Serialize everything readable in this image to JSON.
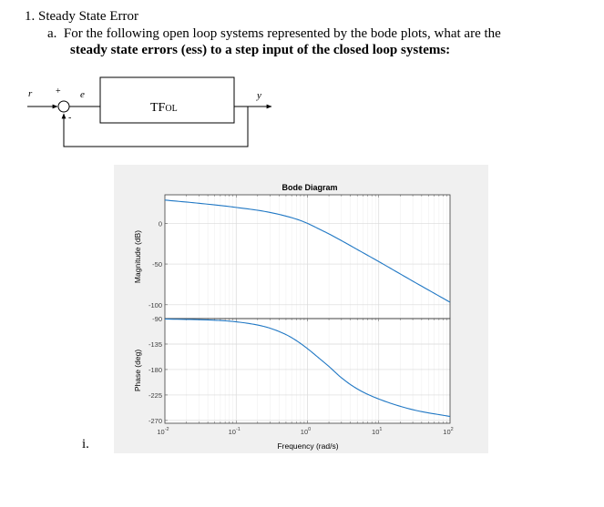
{
  "question": {
    "number_title": "1. Steady State Error",
    "part_line1": "a.  For the following open loop systems represented by the bode plots, what are the",
    "part_line2_bold": "steady state errors (ess) to a step input",
    "part_line2_rest": " of the closed loop systems:",
    "sub_item": "i."
  },
  "block_diagram": {
    "input_label": "r",
    "plus_sign": "+",
    "minus_sign": "-",
    "error_label": "e",
    "block_label_main": "TF",
    "block_label_sub": "OL",
    "output_label": "y"
  },
  "chart_data": {
    "type": "line",
    "title": "Bode Diagram",
    "xlabel": "Frequency (rad/s)",
    "x_scale": "log",
    "xlim": [
      0.01,
      100
    ],
    "x_ticks": [
      {
        "base": "10",
        "exp": "-2"
      },
      {
        "base": "10",
        "exp": "-1"
      },
      {
        "base": "10",
        "exp": "0"
      },
      {
        "base": "10",
        "exp": "1"
      },
      {
        "base": "10",
        "exp": "2"
      }
    ],
    "grid": true,
    "magnitude": {
      "ylabel": "Magnitude (dB)",
      "ylim": [
        -117,
        35
      ],
      "y_ticks": [
        "0",
        "-50",
        "-100"
      ],
      "y_tick_values": [
        0,
        -50,
        -100
      ],
      "x": [
        0.01,
        0.03,
        0.1,
        0.3,
        0.7,
        1,
        1.5,
        2,
        3,
        5,
        10,
        30,
        100
      ],
      "values": [
        28.5,
        24.6,
        19.5,
        13.3,
        5.1,
        -0.1,
        -7.6,
        -13.0,
        -21.3,
        -32.2,
        -47.0,
        -71.0,
        -96.9
      ],
      "color": "#1f77c4"
    },
    "phase": {
      "ylabel": "Phase (deg)",
      "ylim": [
        -275,
        -90
      ],
      "y_ticks": [
        "-90",
        "-135",
        "-180",
        "-225",
        "-270"
      ],
      "y_tick_values": [
        -90,
        -135,
        -180,
        -225,
        -270
      ],
      "x": [
        0.01,
        0.05,
        0.1,
        0.2,
        0.3,
        0.5,
        0.7,
        1,
        1.5,
        2,
        3,
        5,
        10,
        30,
        100
      ],
      "values": [
        -90.8,
        -92.9,
        -95.7,
        -101.4,
        -107.1,
        -118.3,
        -129.0,
        -143.1,
        -161.4,
        -174.6,
        -194.7,
        -214.3,
        -232.1,
        -251.0,
        -263.0
      ],
      "color": "#1f77c4"
    }
  }
}
